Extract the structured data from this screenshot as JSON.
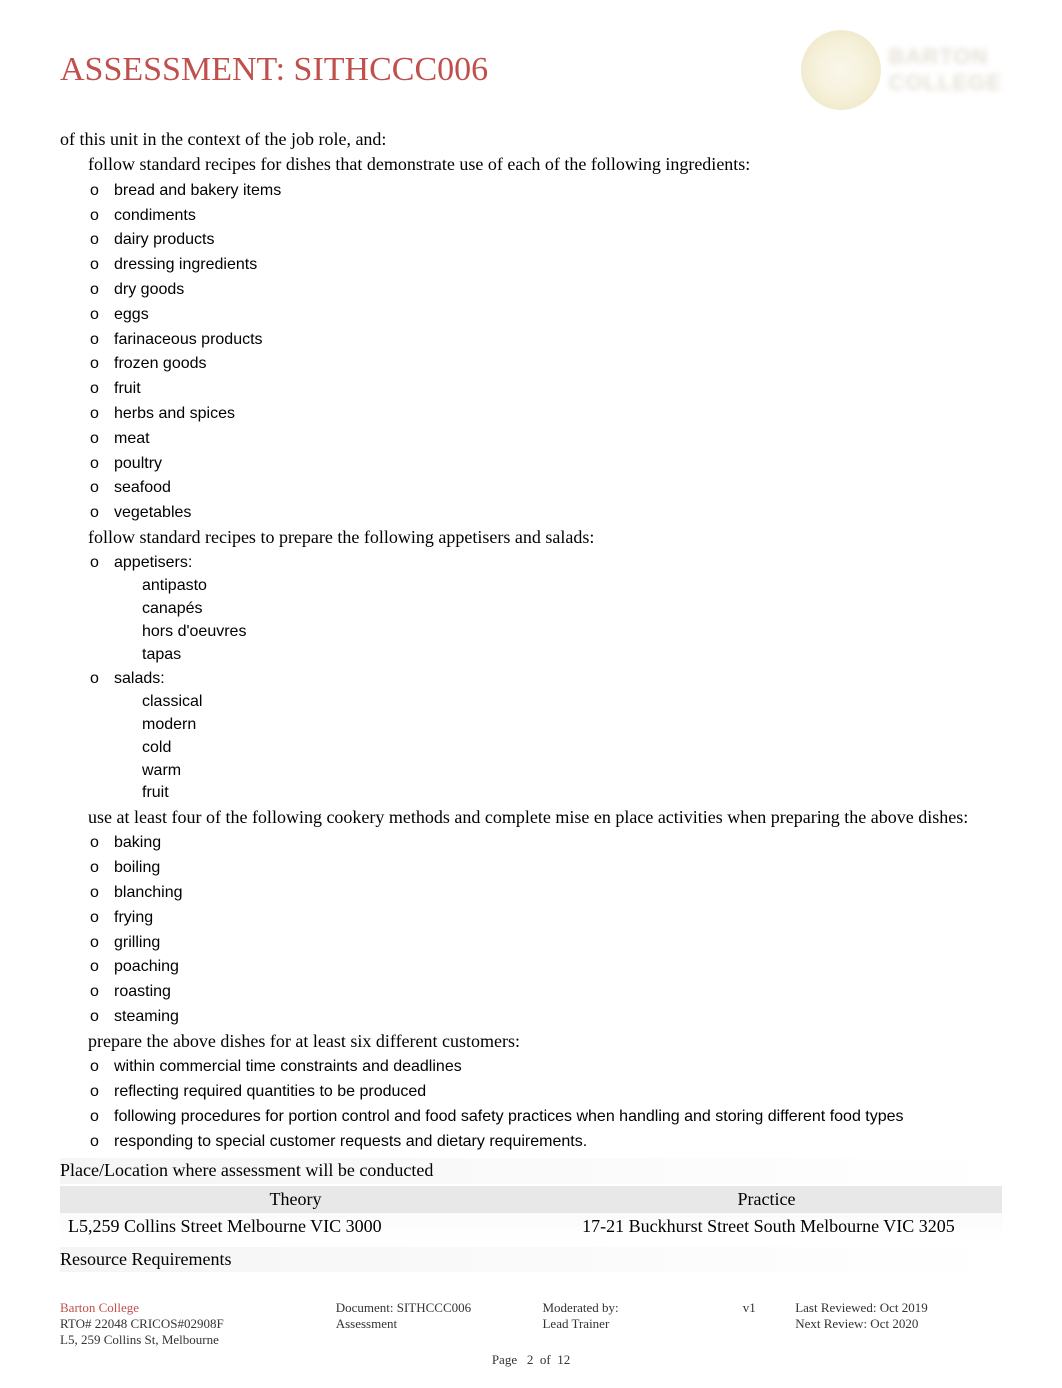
{
  "header": {
    "title": "ASSESSMENT: SITHCCC006",
    "logo_line1": "BARTON",
    "logo_line2": "COLLEGE"
  },
  "content": {
    "intro": "of this unit in the context of the job role, and:",
    "bullets": [
      {
        "level": 1,
        "text": "follow standard recipes for dishes that demonstrate use of each of the following ingredients:",
        "children": [
          {
            "level": 2,
            "text": "bread and bakery items"
          },
          {
            "level": 2,
            "text": "condiments"
          },
          {
            "level": 2,
            "text": "dairy products"
          },
          {
            "level": 2,
            "text": "dressing ingredients"
          },
          {
            "level": 2,
            "text": "dry goods"
          },
          {
            "level": 2,
            "text": "eggs"
          },
          {
            "level": 2,
            "text": "farinaceous products"
          },
          {
            "level": 2,
            "text": "frozen goods"
          },
          {
            "level": 2,
            "text": "fruit"
          },
          {
            "level": 2,
            "text": "herbs and spices"
          },
          {
            "level": 2,
            "text": "meat"
          },
          {
            "level": 2,
            "text": "poultry"
          },
          {
            "level": 2,
            "text": "seafood"
          },
          {
            "level": 2,
            "text": "vegetables"
          }
        ]
      },
      {
        "level": 1,
        "text": "follow standard recipes to prepare the following appetisers and salads:",
        "children": [
          {
            "level": 2,
            "text": "appetisers:",
            "children": [
              {
                "level": 3,
                "text": "antipasto"
              },
              {
                "level": 3,
                "text": "canapés"
              },
              {
                "level": 3,
                "text": "hors d'oeuvres"
              },
              {
                "level": 3,
                "text": "tapas"
              }
            ]
          },
          {
            "level": 2,
            "text": "salads:",
            "children": [
              {
                "level": 3,
                "text": "classical"
              },
              {
                "level": 3,
                "text": "modern"
              },
              {
                "level": 3,
                "text": "cold"
              },
              {
                "level": 3,
                "text": "warm"
              },
              {
                "level": 3,
                "text": "fruit"
              }
            ]
          }
        ]
      },
      {
        "level": 1,
        "text": "use at least four of the following cookery methods and complete mise en place activities when preparing the above dishes:",
        "children": [
          {
            "level": 2,
            "text": "baking"
          },
          {
            "level": 2,
            "text": "boiling"
          },
          {
            "level": 2,
            "text": "blanching"
          },
          {
            "level": 2,
            "text": "frying"
          },
          {
            "level": 2,
            "text": "grilling"
          },
          {
            "level": 2,
            "text": "poaching"
          },
          {
            "level": 2,
            "text": "roasting"
          },
          {
            "level": 2,
            "text": "steaming"
          }
        ]
      },
      {
        "level": 1,
        "text": "prepare the above dishes for at least six different customers:",
        "children": [
          {
            "level": 2,
            "text": "within commercial time constraints and deadlines"
          },
          {
            "level": 2,
            "text": "reflecting required quantities to be produced"
          },
          {
            "level": 2,
            "text": "following procedures for portion control and food safety practices when handling and storing different food types"
          },
          {
            "level": 2,
            "text": "responding to special customer requests and dietary requirements."
          }
        ]
      }
    ],
    "location_heading": "Place/Location where assessment will be conducted",
    "location_table": {
      "headers": [
        "Theory",
        "Practice"
      ],
      "row": [
        "L5,259 Collins Street Melbourne VIC 3000",
        "17-21 Buckhurst Street South Melbourne VIC 3205"
      ]
    },
    "resource_heading": "Resource Requirements"
  },
  "footer": {
    "brand": "Barton College",
    "rto": "RTO# 22048 CRICOS#02908F",
    "address": "L5, 259 Collins St, Melbourne",
    "document_label": "Document: SITHCCC006",
    "document_sub": "Assessment",
    "moderated_label": "Moderated by:",
    "moderated_sub": "Lead Trainer",
    "version": "v1",
    "reviewed": "Last Reviewed: Oct 2019",
    "next_review": "Next Review: Oct 2020",
    "page_label": "Page",
    "page_num": "2",
    "page_of": "of",
    "page_total": "12"
  },
  "markers": {
    "l1": "",
    "l2": "o",
    "l3": ""
  },
  "colors": {
    "title": "#c0504d",
    "text": "#000000",
    "marker": "#666666",
    "header_bg": "#e8e8e8",
    "page_bg": "#ffffff"
  }
}
